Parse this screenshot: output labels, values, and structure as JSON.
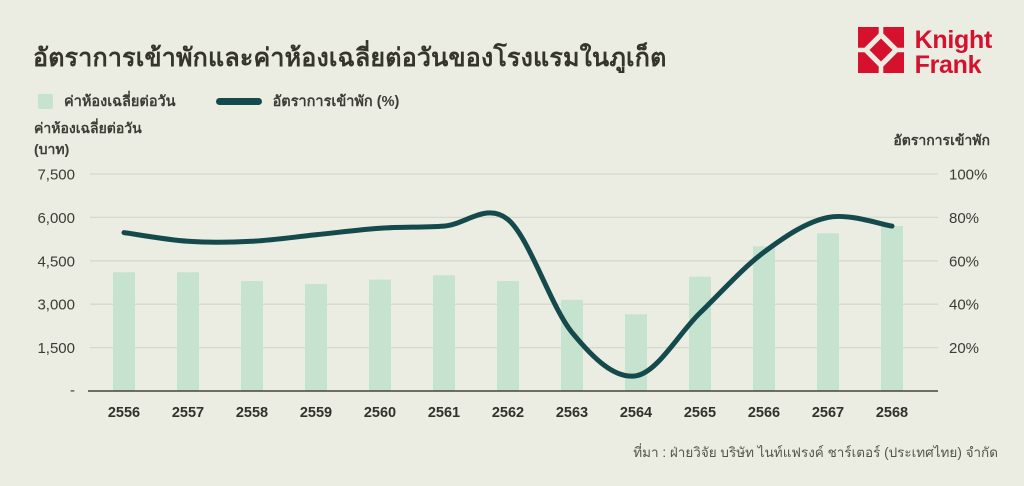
{
  "header": {
    "title": "อัตราการเข้าพักและค่าห้องเฉลี่ยต่อวันของโรงแรมในภูเก็ต",
    "logo": {
      "line1": "Knight",
      "line2": "Frank"
    }
  },
  "legend": {
    "bar_label": "ค่าห้องเฉลี่ยต่อวัน",
    "line_label": "อัตราการเข้าพัก (%)"
  },
  "axes": {
    "left_title_line1": "ค่าห้องเฉลี่ยต่อวัน",
    "left_title_line2": "(บาท)",
    "right_title": "อัตราการเข้าพัก",
    "left_ticks": [
      "7,500",
      "6,000",
      "4,500",
      "3,000",
      "1,500",
      "-"
    ],
    "right_ticks": [
      "100%",
      "80%",
      "60%",
      "40%",
      "20%"
    ]
  },
  "chart_data": {
    "type": "bar+line",
    "title": "อัตราการเข้าพักและค่าห้องเฉลี่ยต่อวันของโรงแรมในภูเก็ต",
    "categories": [
      "2556",
      "2557",
      "2558",
      "2559",
      "2560",
      "2561",
      "2562",
      "2563",
      "2564",
      "2565",
      "2566",
      "2567",
      "2568"
    ],
    "series": [
      {
        "name": "ค่าห้องเฉลี่ยต่อวัน",
        "type": "bar",
        "axis": "left",
        "unit": "บาท",
        "values": [
          4100,
          4100,
          3800,
          3700,
          3850,
          4000,
          3800,
          3150,
          2650,
          3950,
          5000,
          5450,
          5700
        ]
      },
      {
        "name": "อัตราการเข้าพัก (%)",
        "type": "line",
        "axis": "right",
        "unit": "%",
        "values": [
          73,
          69,
          69,
          72,
          75,
          76,
          79,
          27,
          7,
          36,
          64,
          80,
          76
        ]
      }
    ],
    "left_axis": {
      "label": "ค่าห้องเฉลี่ยต่อวัน (บาท)",
      "range": [
        0,
        7500
      ],
      "tick_step": 1500
    },
    "right_axis": {
      "label": "อัตราการเข้าพัก",
      "range": [
        0,
        100
      ],
      "tick_step": 20
    },
    "grid": true,
    "legend_position": "top-left"
  },
  "source": "ที่มา : ฝ่ายวิจัย บริษัท ไนท์แฟรงค์ ชาร์เตอร์ (ประเทศไทย) จำกัด",
  "colors": {
    "background": "#ebece2",
    "bar": "#c5e3ce",
    "line": "#154a4c",
    "brand_red": "#d5112e",
    "grid": "#d7d8cd",
    "baseline": "#45453e",
    "axis_text": "#3c3c34",
    "title_text": "#35352c",
    "source_text": "#56554b"
  }
}
